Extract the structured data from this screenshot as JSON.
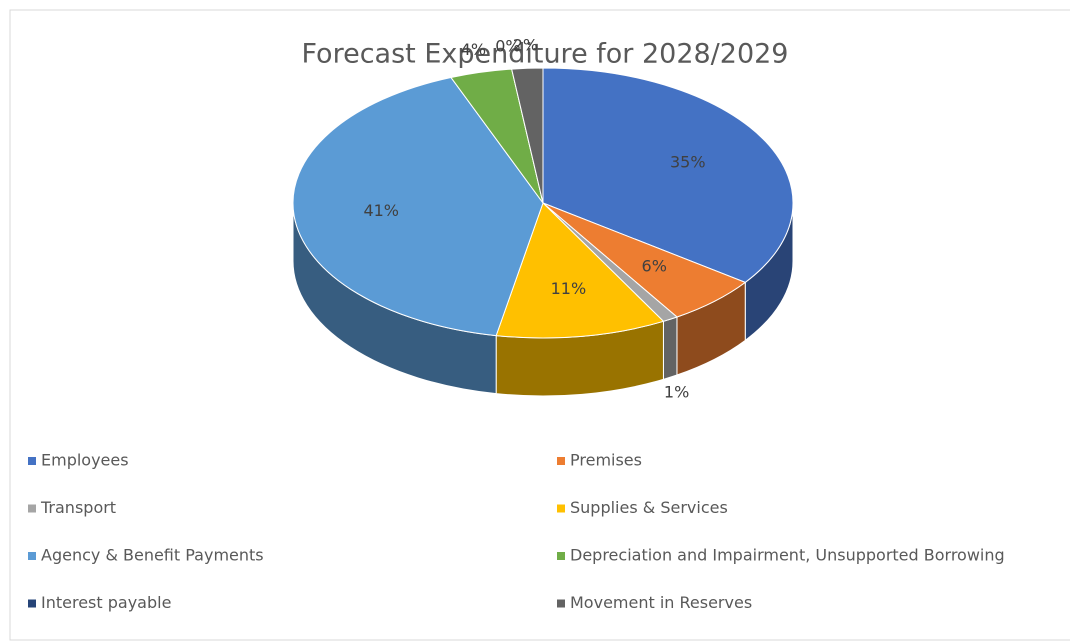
{
  "chart_data": {
    "type": "pie",
    "title": "Forecast Expenditure for 2028/2029",
    "categories": [
      "Employees",
      "Premises",
      "Transport",
      "Supplies & Services",
      "Agency & Benefit Payments",
      "Depreciation and Impairment, Unsupported Borrowing",
      "Interest payable",
      "Movement in Reserves"
    ],
    "values": [
      35,
      6,
      1,
      11,
      41,
      4,
      0,
      2
    ],
    "value_labels": [
      "35%",
      "6%",
      "1%",
      "11%",
      "41%",
      "4%",
      "0%",
      "2%"
    ],
    "colors": [
      "#4472c4",
      "#ed7d31",
      "#a5a5a5",
      "#ffc000",
      "#5b9bd5",
      "#70ad47",
      "#264478",
      "#636363"
    ],
    "legend": "bottom"
  }
}
